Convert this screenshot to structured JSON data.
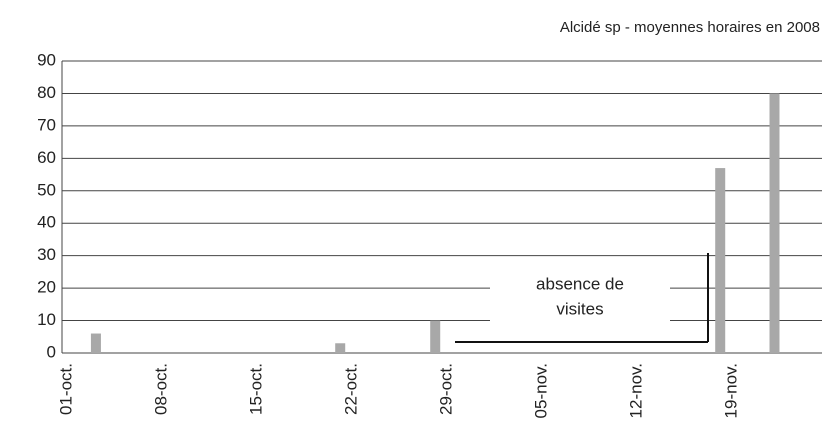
{
  "chart_data": {
    "type": "bar",
    "title": "Alcidé sp - moyennes horaires en 2008",
    "categories": [
      "01-oct.",
      null,
      null,
      null,
      null,
      null,
      null,
      "08-oct.",
      null,
      null,
      null,
      null,
      null,
      null,
      "15-oct.",
      null,
      null,
      null,
      null,
      null,
      null,
      "22-oct.",
      null,
      null,
      null,
      null,
      null,
      null,
      "29-oct.",
      null,
      null,
      null,
      null,
      null,
      null,
      "05-nov.",
      null,
      null,
      null,
      null,
      null,
      null,
      "12-nov.",
      null,
      null,
      null,
      null,
      null,
      null,
      "19-nov.",
      null,
      null,
      null,
      null,
      null,
      null
    ],
    "values": [
      null,
      null,
      6,
      null,
      null,
      null,
      null,
      null,
      null,
      null,
      null,
      null,
      null,
      null,
      null,
      null,
      null,
      null,
      null,
      null,
      3,
      null,
      null,
      null,
      null,
      null,
      null,
      10,
      null,
      null,
      null,
      null,
      null,
      null,
      null,
      null,
      null,
      null,
      null,
      null,
      null,
      null,
      null,
      null,
      null,
      null,
      null,
      null,
      57,
      null,
      null,
      null,
      80,
      null,
      null,
      null
    ],
    "color": "#a8a8a8",
    "ylim": [
      0,
      90
    ],
    "yticks": [
      0,
      10,
      20,
      30,
      40,
      50,
      60,
      70,
      80,
      90
    ],
    "grid": true,
    "annotations": [
      "absence de",
      "visites"
    ]
  }
}
